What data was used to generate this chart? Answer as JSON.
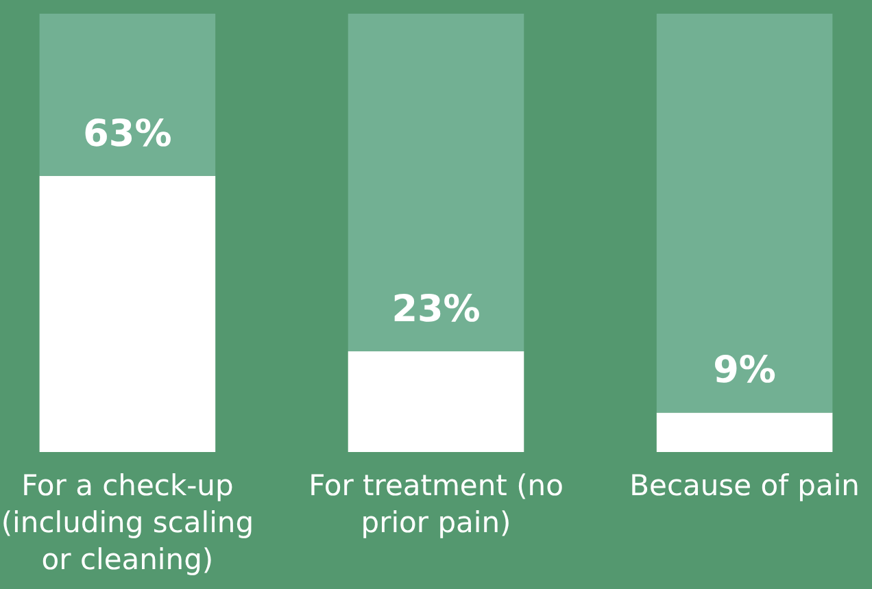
{
  "chart_data": {
    "type": "bar",
    "stacked": true,
    "categories": [
      "For a check-up (including scaling or cleaning)",
      "For treatment (no prior pain)",
      "Because of pain"
    ],
    "ylim": [
      0,
      100
    ],
    "tick_labels": "x",
    "series": [
      {
        "color": "#ffffff",
        "values": [
          63,
          23,
          9
        ],
        "value_labels": [
          "63%",
          "23%",
          "9%"
        ]
      },
      {
        "color": "#72b093",
        "values": [
          37,
          77,
          91
        ]
      }
    ]
  }
}
